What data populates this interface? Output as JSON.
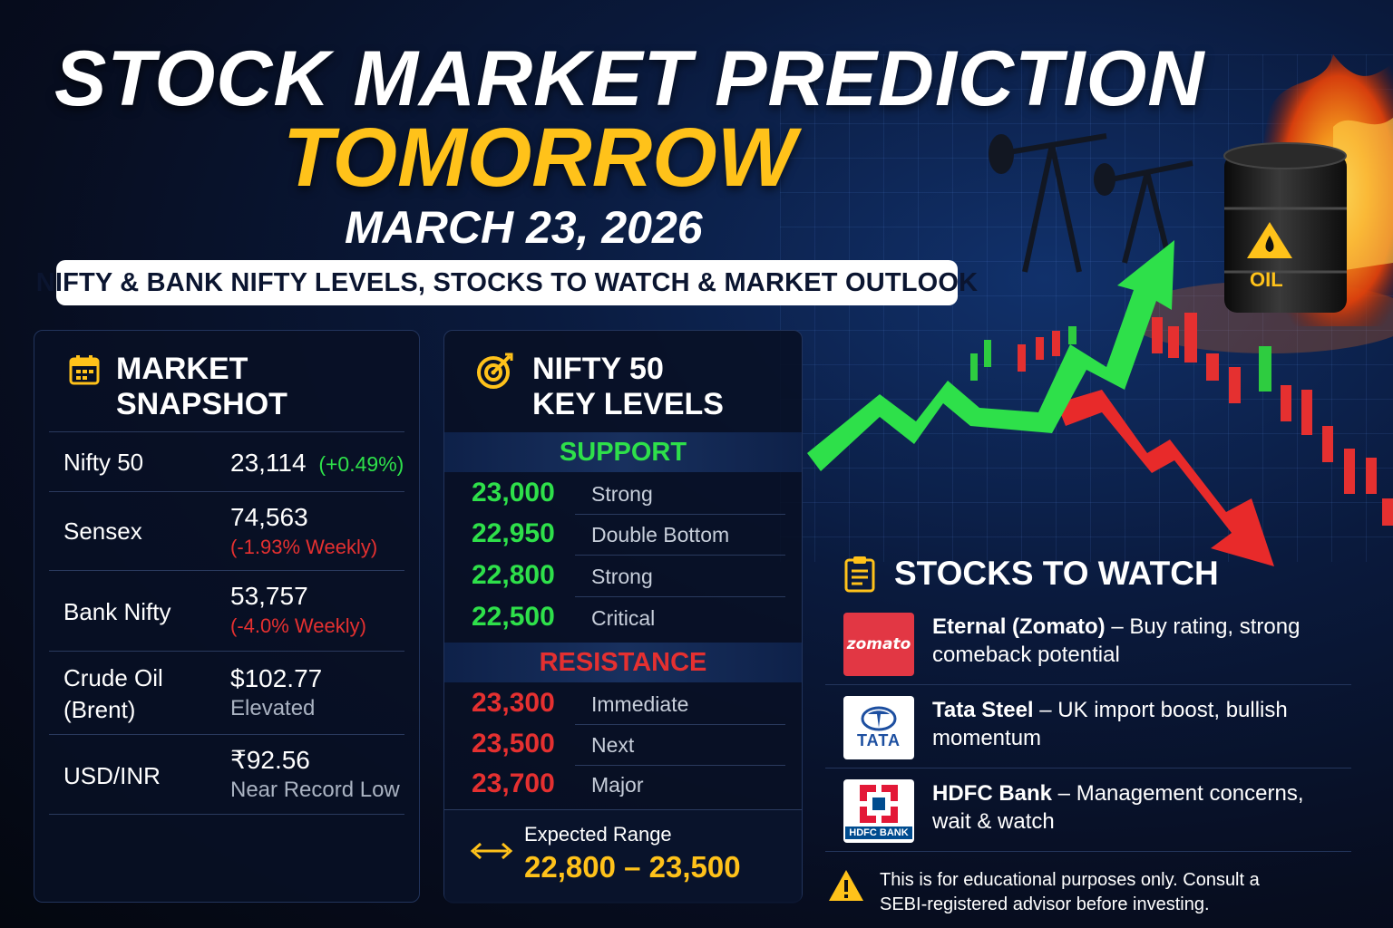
{
  "header": {
    "title_line1": "STOCK MARKET PREDICTION",
    "title_line2": "TOMORROW",
    "date": "MARCH 23, 2026",
    "subtitle": "NIFTY & BANK NIFTY LEVELS, STOCKS TO WATCH & MARKET OUTLOOK"
  },
  "colors": {
    "accent_yellow": "#ffc21a",
    "positive_green": "#2ee04a",
    "negative_red": "#e53030",
    "panel_bg": "#081024"
  },
  "snapshot": {
    "icon": "calendar-icon",
    "title_line1": "MARKET",
    "title_line2": "SNAPSHOT",
    "rows": [
      {
        "label": "Nifty 50",
        "label2": "",
        "value": "23,114",
        "change": "(+0.49%)",
        "note": ""
      },
      {
        "label": "Sensex",
        "label2": "",
        "value": "74,563",
        "change": "",
        "note": "(-1.93% Weekly)"
      },
      {
        "label": "Bank Nifty",
        "label2": "",
        "value": "53,757",
        "change": "",
        "note": "(-4.0% Weekly)"
      },
      {
        "label": "Crude Oil",
        "label2": "(Brent)",
        "value": "$102.77",
        "change": "",
        "note": "Elevated"
      },
      {
        "label": "USD/INR",
        "label2": "",
        "value": "₹92.56",
        "change": "",
        "note": "Near Record Low"
      }
    ]
  },
  "levels": {
    "icon": "target-icon",
    "title_line1": "NIFTY 50",
    "title_line2": "KEY LEVELS",
    "support_label": "SUPPORT",
    "support": [
      {
        "value": "23,000",
        "desc": "Strong"
      },
      {
        "value": "22,950",
        "desc": "Double Bottom"
      },
      {
        "value": "22,800",
        "desc": "Strong"
      },
      {
        "value": "22,500",
        "desc": "Critical"
      }
    ],
    "resistance_label": "RESISTANCE",
    "resistance": [
      {
        "value": "23,300",
        "desc": "Immediate"
      },
      {
        "value": "23,500",
        "desc": "Next"
      },
      {
        "value": "23,700",
        "desc": "Major"
      }
    ],
    "range_icon": "left-right-arrow-icon",
    "range_label": "Expected Range",
    "range_value": "22,800 – 23,500"
  },
  "stocks": {
    "icon": "clipboard-icon",
    "title": "STOCKS TO WATCH",
    "items": [
      {
        "name": "Eternal (Zomato)",
        "desc": " – Buy rating, strong comeback potential",
        "logo_text": "zomato"
      },
      {
        "name": "Tata Steel",
        "desc": " – UK import boost, bullish momentum",
        "logo_text": "TATA"
      },
      {
        "name": "HDFC Bank",
        "desc": " – Management concerns, wait & watch",
        "logo_text": "HDFC BANK"
      }
    ]
  },
  "scene": {
    "barrel_label": "OIL"
  },
  "disclaimer": {
    "icon": "warning-icon",
    "text": "This is for educational purposes only. Consult a SEBI-registered advisor before investing."
  }
}
